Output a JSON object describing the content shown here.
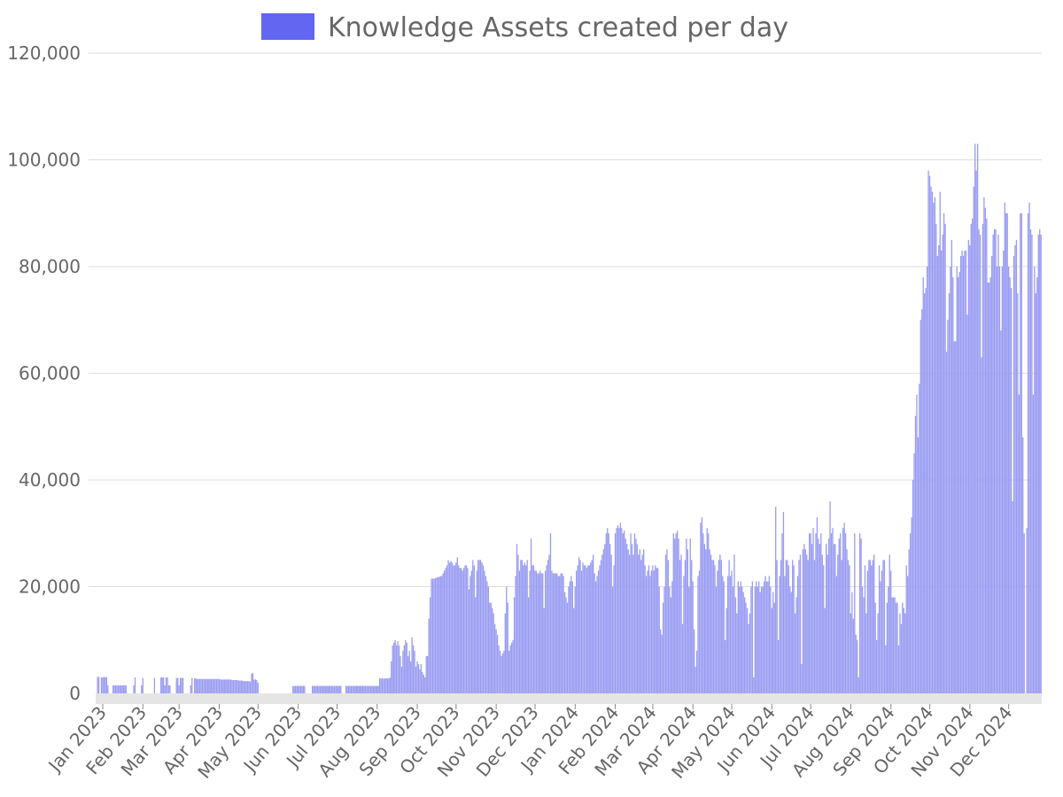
{
  "chart_data": {
    "type": "bar",
    "x_axis": "date",
    "x_range": [
      "2023-01-01",
      "2024-12-31"
    ],
    "ylim": [
      0,
      120000
    ],
    "grid": true,
    "legend_position": "top-center",
    "series": [
      {
        "name": "Knowledge Assets created per day",
        "color": "#6366f1",
        "values_interval": "monthly",
        "months": [
          "Jan 2023",
          "Feb 2023",
          "Mar 2023",
          "Apr 2023",
          "May 2023",
          "Jun 2023",
          "Jul 2023",
          "Aug 2023",
          "Sep 2023",
          "Oct 2023",
          "Nov 2023",
          "Dec 2023",
          "Jan 2024",
          "Feb 2024",
          "Mar 2024",
          "Apr 2024",
          "May 2024",
          "Jun 2024",
          "Jul 2024",
          "Aug 2024",
          "Sep 2024",
          "Oct 2024",
          "Nov 2024",
          "Dec 2024"
        ],
        "values": [
          [
            0,
            3100,
            3100,
            0,
            3000,
            3000,
            3100,
            3000,
            3100,
            1500,
            0,
            0,
            0,
            1500,
            1500,
            1500,
            1500,
            1500,
            1500,
            1500,
            1500,
            1500,
            1500,
            1500,
            0,
            0,
            0,
            0,
            0,
            1500,
            3000
          ],
          [
            0,
            0,
            0,
            0,
            1500,
            2900,
            0,
            0,
            0,
            0,
            0,
            0,
            0,
            0,
            2900,
            0,
            0,
            0,
            0,
            3000,
            3000,
            3000,
            1500,
            3000,
            3000,
            1500,
            1500,
            0
          ],
          [
            0,
            0,
            0,
            2900,
            2900,
            1500,
            2900,
            2900,
            2900,
            0,
            0,
            0,
            0,
            0,
            1500,
            2900,
            0,
            2800,
            2800,
            2700,
            2700,
            2700,
            2700,
            2700,
            2700,
            2700,
            2700,
            2700,
            2700,
            2700,
            2700
          ],
          [
            2700,
            2700,
            2700,
            2700,
            2700,
            2700,
            2600,
            2600,
            2600,
            2600,
            2600,
            2600,
            2600,
            2600,
            2600,
            2500,
            2500,
            2500,
            2500,
            2500,
            2400,
            2400,
            2400,
            2400,
            2300,
            2300,
            2300,
            2300,
            2300,
            2200
          ],
          [
            3700,
            3800,
            2600,
            2600,
            2500,
            2000,
            0,
            0,
            0,
            0,
            0,
            0,
            0,
            0,
            0,
            0,
            0,
            0,
            0,
            0,
            0,
            0,
            0,
            0,
            0,
            0,
            0,
            0,
            0,
            0,
            0
          ],
          [
            0,
            1400,
            1400,
            1400,
            1400,
            1400,
            1400,
            1400,
            1400,
            1400,
            1400,
            0,
            0,
            0,
            0,
            0,
            1400,
            1400,
            1400,
            1400,
            1400,
            1400,
            1400,
            1400,
            1400,
            1400,
            1400,
            1400,
            1400,
            1400
          ],
          [
            1400,
            1400,
            1400,
            1400,
            1400,
            1400,
            1400,
            1400,
            1400,
            0,
            0,
            0,
            1400,
            1400,
            1400,
            1400,
            1400,
            1400,
            1400,
            1400,
            1400,
            1400,
            1400,
            1400,
            1400,
            1400,
            1400,
            1400,
            1400,
            1400,
            1400
          ],
          [
            1400,
            1400,
            1400,
            1400,
            1400,
            1400,
            1400,
            2800,
            2800,
            2800,
            2800,
            2800,
            2800,
            2800,
            2800,
            3000,
            6000,
            9000,
            9500,
            10000,
            9000,
            9800,
            9000,
            7000,
            5000,
            8000,
            9000,
            10000,
            9500,
            7000,
            8000
          ],
          [
            6000,
            10500,
            9000,
            8000,
            5000,
            6000,
            5500,
            4500,
            5500,
            4000,
            3500,
            3000,
            7000,
            7000,
            14000,
            18000,
            21500,
            21500,
            21500,
            21600,
            21700,
            21800,
            21800,
            22000,
            22000,
            22500,
            23000,
            23500,
            24000,
            25000
          ],
          [
            24500,
            24800,
            24500,
            24000,
            24000,
            24500,
            25500,
            24000,
            23500,
            23500,
            23000,
            23500,
            24000,
            24000,
            23500,
            19500,
            22000,
            23000,
            25000,
            24000,
            18000,
            23000,
            25000,
            25000,
            25000,
            24500,
            24000,
            23000,
            22000,
            21000,
            20000
          ],
          [
            17000,
            17000,
            16000,
            15000,
            13000,
            12000,
            11000,
            9000,
            8000,
            7000,
            7500,
            8000,
            15000,
            20000,
            17000,
            8000,
            9000,
            9500,
            10000,
            18000,
            22000,
            28000,
            26000,
            23000,
            25000,
            25000,
            24000,
            24500,
            24000,
            25000
          ],
          [
            18000,
            23000,
            29000,
            24000,
            24000,
            23000,
            23000,
            22500,
            22500,
            23000,
            22500,
            22500,
            16000,
            23000,
            24000,
            25000,
            26000,
            30000,
            23000,
            22500,
            22500,
            22500,
            22500,
            22000,
            22000,
            22500,
            22500,
            22000,
            19000,
            18000,
            17000
          ],
          [
            20000,
            21000,
            22000,
            21000,
            16000,
            20000,
            23000,
            24000,
            25500,
            25000,
            23000,
            24500,
            24000,
            24000,
            23500,
            24000,
            24000,
            24500,
            25000,
            26000,
            22500,
            21000,
            22000,
            23000,
            24000,
            25000,
            26000,
            27000,
            28000,
            30000,
            31000
          ],
          [
            30000,
            28000,
            26000,
            20000,
            24000,
            30000,
            31000,
            31500,
            31000,
            32000,
            31000,
            30000,
            30500,
            29000,
            28000,
            27000,
            26000,
            30000,
            28000,
            26000,
            30000,
            29000,
            28000,
            26000,
            27000,
            25000,
            26000,
            27000,
            24000
          ],
          [
            22000,
            23000,
            24000,
            22000,
            23000,
            24000,
            23000,
            24000,
            23500,
            23500,
            20000,
            12000,
            11000,
            17000,
            20000,
            26000,
            27000,
            25000,
            20000,
            18000,
            21000,
            30000,
            29000,
            30000,
            30500,
            29000,
            25000,
            26000,
            13000,
            22000,
            25000
          ],
          [
            29000,
            27000,
            20000,
            29000,
            25000,
            21000,
            12000,
            5000,
            8000,
            22000,
            23000,
            32000,
            33000,
            30000,
            28000,
            27000,
            31000,
            30000,
            27000,
            26000,
            25000,
            25000,
            24000,
            20000,
            23000,
            25000,
            26000,
            25000,
            22000,
            21000
          ],
          [
            10000,
            16000,
            22000,
            25000,
            22000,
            23000,
            20000,
            26000,
            18000,
            15000,
            21000,
            20000,
            21000,
            20000,
            19000,
            18000,
            17000,
            16000,
            13000,
            15000,
            20000,
            21000,
            3000,
            20000,
            21000,
            20000,
            21000,
            19000,
            20000,
            20000,
            21000
          ],
          [
            22000,
            21000,
            21000,
            22000,
            20000,
            16000,
            19000,
            17000,
            35000,
            25000,
            10000,
            22000,
            25000,
            30000,
            34000,
            22000,
            25000,
            25000,
            24000,
            20000,
            19000,
            25000,
            24000,
            15000,
            18000,
            22000,
            25000,
            26000,
            5500,
            27000
          ],
          [
            28000,
            27000,
            26000,
            25000,
            30000,
            30000,
            28000,
            31000,
            25000,
            30000,
            33000,
            29000,
            28000,
            30000,
            26000,
            24000,
            16000,
            28000,
            26000,
            29000,
            36000,
            30000,
            31000,
            28000,
            28000,
            22000,
            26000,
            29000,
            30000,
            25000,
            31000
          ],
          [
            32000,
            30000,
            27000,
            25000,
            24000,
            15000,
            19000,
            14000,
            30000,
            11000,
            10000,
            3000,
            30000,
            29000,
            20000,
            18000,
            24000,
            15000,
            23000,
            25000,
            25000,
            24000,
            25000,
            26000,
            17000,
            10000,
            15000,
            24000,
            21000,
            23000,
            25000
          ],
          [
            25000,
            9000,
            17000,
            20000,
            26000,
            23000,
            18000,
            18000,
            18000,
            17000,
            17000,
            9000,
            15000,
            13000,
            17000,
            16000,
            15000,
            24000,
            22000,
            27000,
            30000,
            33000,
            40000,
            45000,
            52000,
            56000,
            48000,
            58000,
            70000,
            72000
          ],
          [
            78000,
            75000,
            76000,
            80000,
            98000,
            97000,
            95000,
            94000,
            92000,
            93000,
            88000,
            82000,
            84000,
            94000,
            83000,
            86000,
            90000,
            88000,
            64000,
            70000,
            75000,
            80000,
            85000,
            78000,
            66000,
            66000,
            80000,
            78000,
            79000,
            82000,
            83000
          ],
          [
            82000,
            83000,
            83000,
            71000,
            85000,
            84000,
            88000,
            89000,
            95000,
            103000,
            98000,
            103000,
            87000,
            86000,
            63000,
            88000,
            93000,
            91000,
            89000,
            77000,
            77000,
            78000,
            82000,
            86000,
            87000,
            87000,
            80000,
            86000,
            80000,
            68000
          ],
          [
            80000,
            83000,
            92000,
            90000,
            90000,
            80000,
            78000,
            76000,
            36000,
            82000,
            84000,
            85000,
            75000,
            56000,
            90000,
            90000,
            48000,
            30000,
            0,
            31000,
            90000,
            92000,
            87000,
            86000,
            56000,
            80000,
            75000,
            78000,
            86000,
            87000,
            86000
          ]
        ]
      }
    ],
    "title": "",
    "xlabel": "",
    "ylabel": ""
  }
}
